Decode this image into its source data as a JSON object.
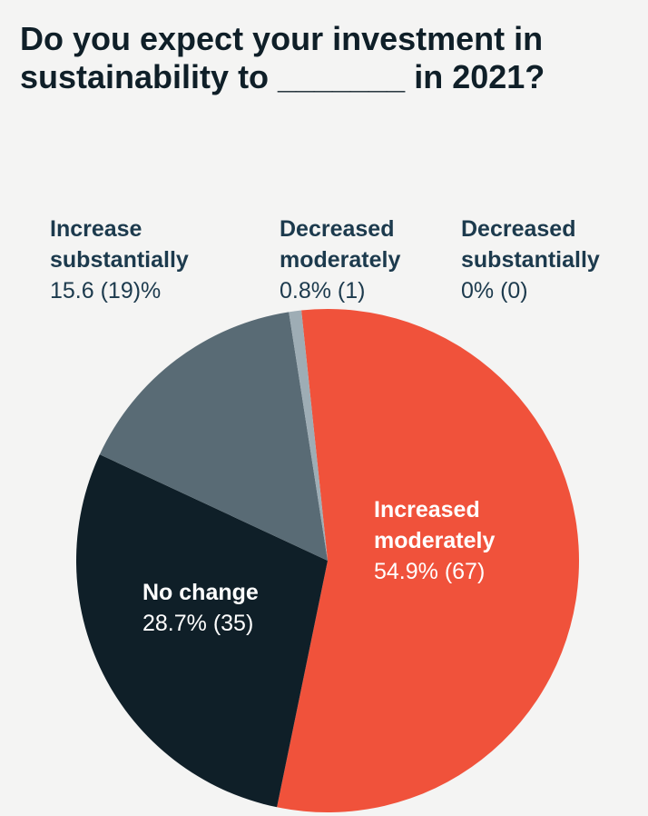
{
  "title": {
    "line1": "Do you expect your investment in",
    "line2": "sustainability to _______ in 2021?"
  },
  "chart_data": {
    "type": "pie",
    "start_angle_deg": -6,
    "direction": "clockwise",
    "slices": [
      {
        "name_lines": [
          "Increased",
          "moderately"
        ],
        "value_text": "54.9% (67)",
        "percent": 54.9,
        "count": 67,
        "color": "#f0523b",
        "label_color": "#ffffff",
        "label_position": "inside"
      },
      {
        "name_lines": [
          "No change"
        ],
        "value_text": "28.7% (35)",
        "percent": 28.7,
        "count": 35,
        "color": "#0f1f28",
        "label_color": "#ffffff",
        "label_position": "inside"
      },
      {
        "name_lines": [
          "Increase",
          "substantially"
        ],
        "value_text": "15.6 (19)%",
        "percent": 15.6,
        "count": 19,
        "color": "#596b75",
        "label_color": "#1c3a4d",
        "label_position": "above"
      },
      {
        "name_lines": [
          "Decreased",
          "moderately"
        ],
        "value_text": "0.8% (1)",
        "percent": 0.8,
        "count": 1,
        "color": "#9eadb5",
        "label_color": "#1c3a4d",
        "label_position": "above"
      },
      {
        "name_lines": [
          "Decreased",
          "substantially"
        ],
        "value_text": "0% (0)",
        "percent": 0,
        "count": 0,
        "color": "#c8d0d4",
        "label_color": "#1c3a4d",
        "label_position": "above"
      }
    ]
  }
}
